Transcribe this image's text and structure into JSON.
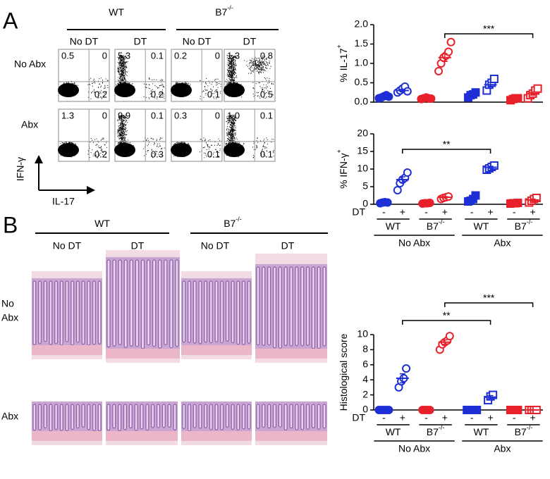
{
  "panel_a": {
    "label": "A",
    "groups": [
      {
        "text": "WT",
        "sup": ""
      },
      {
        "text": "B7",
        "sup": "-/-"
      }
    ],
    "conditions": [
      "No DT",
      "DT",
      "No DT",
      "DT"
    ],
    "rows": [
      "No Abx",
      "Abx"
    ],
    "plots": [
      [
        [
          "0.5",
          "0",
          "0.2"
        ],
        [
          "5.3",
          "0.1",
          "0.2"
        ],
        [
          "0.2",
          "0",
          "0.1"
        ],
        [
          "1.3",
          "0.8",
          "0.5"
        ]
      ],
      [
        [
          "1.3",
          "0",
          "0.2"
        ],
        [
          "9.9",
          "0.1",
          "0.3"
        ],
        [
          "0.3",
          "0",
          "0.1"
        ],
        [
          "1.0",
          "0.1",
          "0.1"
        ]
      ]
    ],
    "y_axis": "IFN-γ",
    "x_axis": "IL-17"
  },
  "panel_b": {
    "label": "B",
    "groups": [
      {
        "text": "WT",
        "sup": ""
      },
      {
        "text": "B7",
        "sup": "-/-"
      }
    ],
    "conditions": [
      "No DT",
      "DT",
      "No DT",
      "DT"
    ],
    "rows": [
      "No",
      "Abx",
      "Abx"
    ]
  },
  "chart_data": [
    {
      "type": "dot",
      "ylabel": {
        "text": "% IL-17",
        "sup": "+"
      },
      "ylim": [
        0,
        2
      ],
      "yticks": [
        {
          "value": 0,
          "label": "0.0"
        },
        {
          "value": 0.5,
          "label": "0.5"
        },
        {
          "value": 1,
          "label": "1.0"
        },
        {
          "value": 1.5,
          "label": "1.5"
        },
        {
          "value": 2,
          "label": "2.0"
        }
      ],
      "series": [
        {
          "color": "#1f2fd6",
          "marker": "circle",
          "filled": true,
          "values": [
            0.1,
            0.12,
            0.15,
            0.18,
            0.14
          ],
          "mean": 0.14,
          "sem": 0.02
        },
        {
          "color": "#1f2fd6",
          "marker": "circle",
          "filled": false,
          "values": [
            0.25,
            0.3,
            0.35,
            0.4,
            0.28
          ],
          "mean": 0.3,
          "sem": 0.03
        },
        {
          "color": "#e8202a",
          "marker": "circle",
          "filled": true,
          "values": [
            0.08,
            0.1,
            0.12,
            0.1,
            0.09
          ],
          "mean": 0.1,
          "sem": 0.01
        },
        {
          "color": "#e8202a",
          "marker": "circle",
          "filled": false,
          "values": [
            0.8,
            1.0,
            1.15,
            1.2,
            1.3,
            1.55
          ],
          "mean": 1.15,
          "sem": 0.1
        },
        {
          "color": "#1f2fd6",
          "marker": "square",
          "filled": true,
          "values": [
            0.12,
            0.18,
            0.2,
            0.25
          ],
          "mean": 0.2,
          "sem": 0.03
        },
        {
          "color": "#1f2fd6",
          "marker": "square",
          "filled": false,
          "values": [
            0.3,
            0.45,
            0.5,
            0.6
          ],
          "mean": 0.45,
          "sem": 0.06
        },
        {
          "color": "#e8202a",
          "marker": "square",
          "filled": true,
          "values": [
            0.05,
            0.08,
            0.1,
            0.1
          ],
          "mean": 0.08,
          "sem": 0.01
        },
        {
          "color": "#e8202a",
          "marker": "square",
          "filled": false,
          "values": [
            0.1,
            0.18,
            0.22,
            0.3,
            0.35
          ],
          "mean": 0.22,
          "sem": 0.04
        }
      ],
      "significance": [
        {
          "from": 3,
          "to": 7,
          "label": "***"
        }
      ]
    },
    {
      "type": "dot",
      "ylabel": {
        "text": "% IFN-γ",
        "sup": "+"
      },
      "ylim": [
        0,
        20
      ],
      "yticks": [
        0,
        5,
        10,
        15,
        20
      ],
      "series": [
        {
          "color": "#1f2fd6",
          "marker": "circle",
          "filled": true,
          "values": [
            0.3,
            0.5,
            0.6,
            0.5
          ],
          "mean": 0.5,
          "sem": 0.1
        },
        {
          "color": "#1f2fd6",
          "marker": "circle",
          "filled": false,
          "values": [
            4,
            6,
            7,
            7.5,
            9
          ],
          "mean": 7,
          "sem": 0.8
        },
        {
          "color": "#e8202a",
          "marker": "circle",
          "filled": true,
          "values": [
            0.2,
            0.3,
            0.3,
            0.4
          ],
          "mean": 0.3,
          "sem": 0.05
        },
        {
          "color": "#e8202a",
          "marker": "circle",
          "filled": false,
          "values": [
            1.5,
            1.8,
            2,
            2.2
          ],
          "mean": 2,
          "sem": 0.2
        },
        {
          "color": "#1f2fd6",
          "marker": "square",
          "filled": true,
          "values": [
            0.8,
            1,
            1.5,
            2.5
          ],
          "mean": 1.5,
          "sem": 0.4
        },
        {
          "color": "#1f2fd6",
          "marker": "square",
          "filled": false,
          "values": [
            9.8,
            10.2,
            10.6,
            11
          ],
          "mean": 10.5,
          "sem": 0.3
        },
        {
          "color": "#e8202a",
          "marker": "square",
          "filled": true,
          "values": [
            0.2,
            0.3,
            0.3,
            0.4
          ],
          "mean": 0.3,
          "sem": 0.05
        },
        {
          "color": "#e8202a",
          "marker": "square",
          "filled": false,
          "values": [
            0.5,
            1,
            1.5,
            1.8
          ],
          "mean": 1.2,
          "sem": 0.3
        }
      ],
      "significance": [
        {
          "from": 1,
          "to": 5,
          "label": "**"
        }
      ],
      "x_groups": {
        "row_label": "DT",
        "signs": [
          "-",
          "+",
          "-",
          "+",
          "-",
          "+",
          "-",
          "+"
        ],
        "genotypes": [
          {
            "text": "WT",
            "sup": ""
          },
          {
            "text": "B7",
            "sup": "-/-"
          },
          {
            "text": "WT",
            "sup": ""
          },
          {
            "text": "B7",
            "sup": "-/-"
          }
        ],
        "treatments": [
          "No Abx",
          "Abx"
        ]
      }
    },
    {
      "type": "dot",
      "ylabel": {
        "text": "Histological score",
        "sup": ""
      },
      "ylim": [
        0,
        10
      ],
      "yticks": [
        0,
        2,
        4,
        6,
        8,
        10
      ],
      "series": [
        {
          "color": "#1f2fd6",
          "marker": "circle",
          "filled": true,
          "values": [
            0,
            0,
            0,
            0,
            0
          ],
          "mean": 0,
          "sem": 0
        },
        {
          "color": "#1f2fd6",
          "marker": "circle",
          "filled": false,
          "values": [
            3,
            3.8,
            4.2,
            5.5
          ],
          "mean": 4.2,
          "sem": 0.6
        },
        {
          "color": "#e8202a",
          "marker": "circle",
          "filled": true,
          "values": [
            0,
            0,
            0,
            0
          ],
          "mean": 0,
          "sem": 0
        },
        {
          "color": "#e8202a",
          "marker": "circle",
          "filled": false,
          "values": [
            8,
            8.7,
            9,
            9.2,
            9.8
          ],
          "mean": 9,
          "sem": 0.3
        },
        {
          "color": "#1f2fd6",
          "marker": "square",
          "filled": true,
          "values": [
            0,
            0,
            0,
            0,
            0
          ],
          "mean": 0,
          "sem": 0
        },
        {
          "color": "#1f2fd6",
          "marker": "square",
          "filled": false,
          "values": [
            1.3,
            1.8,
            2
          ],
          "mean": 1.7,
          "sem": 0.2
        },
        {
          "color": "#e8202a",
          "marker": "square",
          "filled": true,
          "values": [
            0,
            0,
            0,
            0
          ],
          "mean": 0,
          "sem": 0
        },
        {
          "color": "#e8202a",
          "marker": "square",
          "filled": false,
          "values": [
            0,
            0,
            0,
            0
          ],
          "mean": 0,
          "sem": 0
        }
      ],
      "significance": [
        {
          "from": 1,
          "to": 5,
          "label": "**"
        },
        {
          "from": 3,
          "to": 7,
          "label": "***"
        }
      ],
      "x_groups": {
        "row_label": "DT",
        "signs": [
          "-",
          "+",
          "-",
          "+",
          "-",
          "+",
          "-",
          "+"
        ],
        "genotypes": [
          {
            "text": "WT",
            "sup": ""
          },
          {
            "text": "B7",
            "sup": "-/-"
          },
          {
            "text": "WT",
            "sup": ""
          },
          {
            "text": "B7",
            "sup": "-/-"
          }
        ],
        "treatments": [
          "No Abx",
          "Abx"
        ]
      }
    }
  ]
}
